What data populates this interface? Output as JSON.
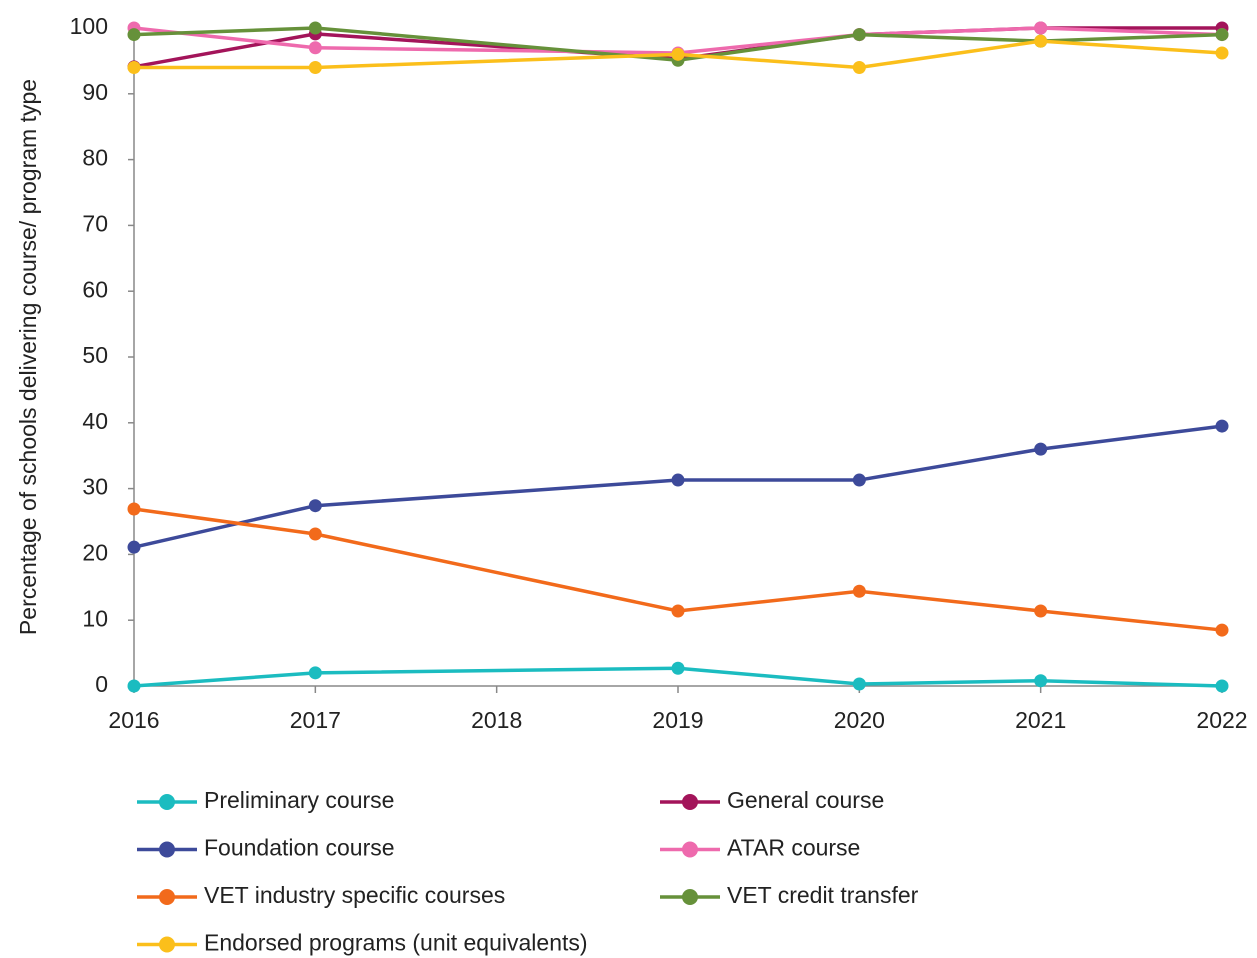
{
  "chart_data": {
    "type": "line",
    "y_label": "Percentage of schools delivering course/ program type",
    "x": [
      2016,
      2017,
      2019,
      2020,
      2021,
      2022
    ],
    "xlim": [
      2016,
      2022
    ],
    "xticks": [
      2016,
      2017,
      2018,
      2019,
      2020,
      2021,
      2022
    ],
    "ylim": [
      0,
      100
    ],
    "yticks": [
      0,
      10,
      20,
      30,
      40,
      50,
      60,
      70,
      80,
      90,
      100
    ],
    "grid": false,
    "series": [
      {
        "name": "Preliminary course",
        "color": "#1bbcc0",
        "values": [
          0,
          2.0,
          2.7,
          0.3,
          0.8,
          0
        ]
      },
      {
        "name": "General course",
        "color": "#a3145a",
        "values": [
          94.1,
          99.1,
          95.3,
          99,
          100,
          100
        ]
      },
      {
        "name": "Foundation course",
        "color": "#3d4a9a",
        "values": [
          21.1,
          27.4,
          31.3,
          31.3,
          36.0,
          39.5
        ]
      },
      {
        "name": "ATAR course",
        "color": "#ee6aad",
        "values": [
          100,
          97,
          96.2,
          99,
          100,
          99
        ]
      },
      {
        "name": "VET industry specific courses",
        "color": "#f26a1b",
        "values": [
          26.9,
          23.1,
          11.4,
          14.4,
          11.4,
          8.5
        ]
      },
      {
        "name": "VET credit transfer",
        "color": "#66913a",
        "values": [
          99,
          100,
          95.1,
          99,
          98,
          99
        ]
      },
      {
        "name": "Endorsed programs (unit equivalents)",
        "color": "#fbbf1b",
        "values": [
          94,
          94,
          96,
          94,
          98,
          96.2
        ]
      }
    ]
  }
}
